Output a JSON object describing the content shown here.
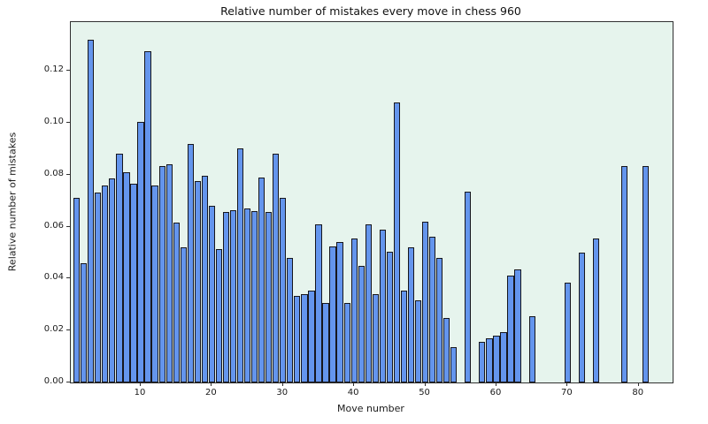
{
  "chart_data": {
    "type": "bar",
    "title": "Relative number of mistakes every move in chess 960",
    "xlabel": "Move number",
    "ylabel": "Relative number of mistakes",
    "x_start": 1,
    "values": [
      0.071,
      0.046,
      0.132,
      0.073,
      0.076,
      0.0785,
      0.088,
      0.081,
      0.0765,
      0.1005,
      0.1275,
      0.076,
      0.0835,
      0.084,
      0.0615,
      0.052,
      0.092,
      0.0775,
      0.0795,
      0.068,
      0.0515,
      0.0655,
      0.0665,
      0.09,
      0.067,
      0.066,
      0.079,
      0.0655,
      0.088,
      0.071,
      0.048,
      0.0335,
      0.034,
      0.0355,
      0.061,
      0.0305,
      0.0525,
      0.054,
      0.0305,
      0.0555,
      0.045,
      0.061,
      0.034,
      0.059,
      0.0505,
      0.108,
      0.0355,
      0.052,
      0.0315,
      0.062,
      0.056,
      0.048,
      0.025,
      0.0135,
      0,
      0.0735,
      0,
      0.0155,
      0.017,
      0.018,
      0.0195,
      0.041,
      0.0435,
      0,
      0.0255,
      0,
      0,
      0,
      0,
      0.0385,
      0,
      0.05,
      0,
      0.0555,
      0,
      0,
      0,
      0.0835,
      0,
      0,
      0.0835,
      0
    ],
    "bar_width_data": 0.9,
    "xlim": [
      0.17,
      84.76
    ],
    "ylim": [
      0,
      0.1388
    ],
    "xtick_values": [
      10,
      20,
      30,
      40,
      50,
      60,
      70,
      80
    ],
    "xtick_labels": [
      "10",
      "20",
      "30",
      "40",
      "50",
      "60",
      "70",
      "80"
    ],
    "ytick_values": [
      0,
      0.02,
      0.04,
      0.06,
      0.08,
      0.1,
      0.12
    ],
    "ytick_labels": [
      "0.00",
      "0.02",
      "0.04",
      "0.06",
      "0.08",
      "0.10",
      "0.12"
    ],
    "grid": false,
    "legend": null,
    "colors": {
      "bar_fill": "#6495ed",
      "bar_edge": "#16161d",
      "plot_background": "#e6f4ed",
      "figure_background": "#ffffff",
      "spine": "#303030"
    }
  }
}
